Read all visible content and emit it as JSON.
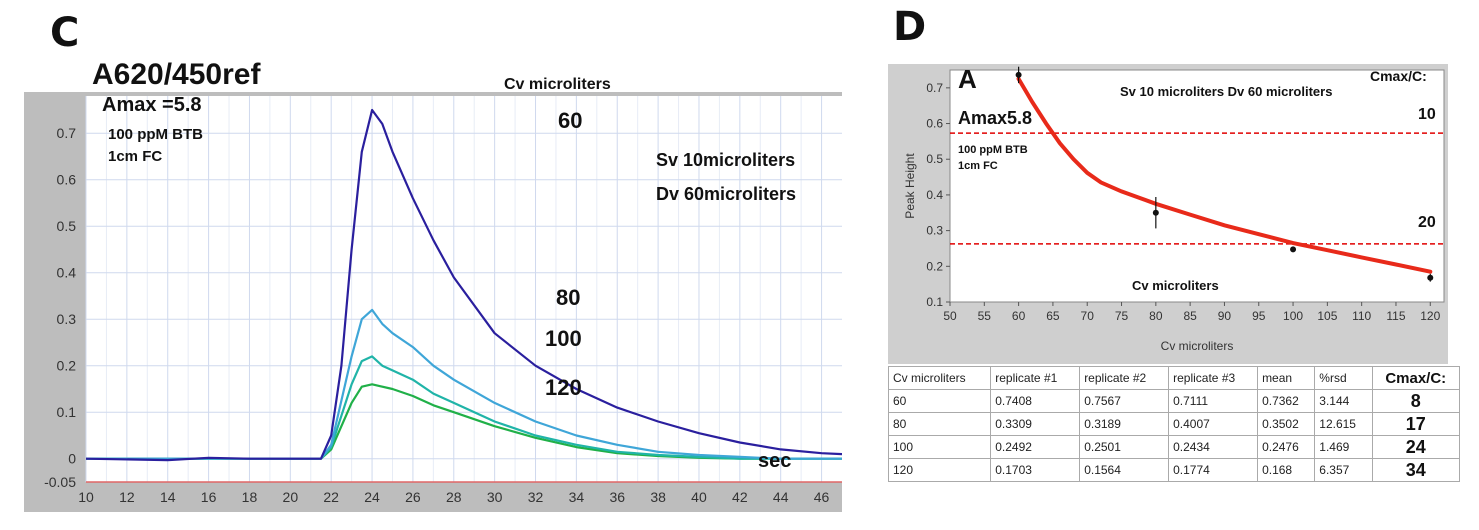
{
  "panel_c": {
    "letter": "C",
    "overlay": {
      "header": "A620/450ref",
      "amax": "Amax =5.8",
      "conc": "100 ppM BTB",
      "cell": "1cm FC",
      "cv_label": "Cv microliters",
      "sv": "Sv 10microliters",
      "dv": "Dv 60microliters",
      "sec": "sec",
      "labels_60": "60",
      "labels_80": "80",
      "labels_100": "100",
      "labels_120": "120"
    }
  },
  "panel_d": {
    "letter": "D",
    "overlay": {
      "corner": "A",
      "amax": "Amax5.8",
      "conc": "100 ppM BTB",
      "cell": "1cm FC",
      "sv_dv": "Sv 10 microliters  Dv 60 microliters",
      "cmax": "Cmax/C:",
      "line10": "10",
      "line20": "20",
      "cv": "Cv microliters"
    },
    "table": {
      "headers": [
        "Cv microliters",
        "replicate #1",
        "replicate #2",
        "replicate #3",
        "mean",
        "%rsd",
        "Cmax/C:"
      ],
      "rows": [
        [
          "60",
          "0.7408",
          "0.7567",
          "0.7111",
          "0.7362",
          "3.144",
          "8"
        ],
        [
          "80",
          "0.3309",
          "0.3189",
          "0.4007",
          "0.3502",
          "12.615",
          "17"
        ],
        [
          "100",
          "0.2492",
          "0.2501",
          "0.2434",
          "0.2476",
          "1.469",
          "24"
        ],
        [
          "120",
          "0.1703",
          "0.1564",
          "0.1774",
          "0.168",
          "6.357",
          "34"
        ]
      ]
    }
  },
  "chart_data": [
    {
      "type": "line",
      "panel": "C",
      "xlabel": "sec",
      "ylabel": "A620/450ref",
      "xlim": [
        10,
        47
      ],
      "ylim": [
        -0.05,
        0.78
      ],
      "x_ticks": [
        10,
        12,
        14,
        16,
        18,
        20,
        22,
        24,
        26,
        28,
        30,
        32,
        34,
        36,
        38,
        40,
        42,
        44,
        46
      ],
      "y_ticks": [
        -0.05,
        0,
        0.1,
        0.2,
        0.3,
        0.4,
        0.5,
        0.6,
        0.7
      ],
      "y_tick_labels": [
        "-0.05",
        "0",
        "0.1",
        "0.2",
        "0.3",
        "0.4",
        "0.5",
        "0.6",
        "0.7"
      ],
      "grid": true,
      "series": [
        {
          "name": "60",
          "color": "#2a1f9e",
          "points": [
            [
              10,
              0
            ],
            [
              14,
              -0.003
            ],
            [
              16,
              0.002
            ],
            [
              18,
              0
            ],
            [
              20,
              0
            ],
            [
              21.5,
              0
            ],
            [
              22,
              0.05
            ],
            [
              22.5,
              0.2
            ],
            [
              23,
              0.45
            ],
            [
              23.5,
              0.66
            ],
            [
              24,
              0.75
            ],
            [
              24.5,
              0.72
            ],
            [
              25,
              0.66
            ],
            [
              26,
              0.56
            ],
            [
              27,
              0.47
            ],
            [
              28,
              0.39
            ],
            [
              30,
              0.27
            ],
            [
              32,
              0.2
            ],
            [
              34,
              0.15
            ],
            [
              36,
              0.11
            ],
            [
              38,
              0.08
            ],
            [
              40,
              0.055
            ],
            [
              42,
              0.035
            ],
            [
              44,
              0.02
            ],
            [
              46,
              0.012
            ],
            [
              47,
              0.01
            ]
          ]
        },
        {
          "name": "80",
          "color": "#3fa6d8",
          "points": [
            [
              10,
              0
            ],
            [
              20,
              0
            ],
            [
              21.5,
              0
            ],
            [
              22,
              0.03
            ],
            [
              23,
              0.22
            ],
            [
              23.5,
              0.3
            ],
            [
              24,
              0.32
            ],
            [
              24.5,
              0.29
            ],
            [
              25,
              0.27
            ],
            [
              26,
              0.24
            ],
            [
              27,
              0.2
            ],
            [
              28,
              0.17
            ],
            [
              30,
              0.12
            ],
            [
              32,
              0.08
            ],
            [
              34,
              0.05
            ],
            [
              36,
              0.03
            ],
            [
              38,
              0.015
            ],
            [
              40,
              0.008
            ],
            [
              42,
              0.004
            ],
            [
              44,
              0
            ],
            [
              47,
              0
            ]
          ]
        },
        {
          "name": "100",
          "color": "#20b4a8",
          "points": [
            [
              10,
              0
            ],
            [
              20,
              0
            ],
            [
              21.5,
              0
            ],
            [
              22,
              0.025
            ],
            [
              23,
              0.16
            ],
            [
              23.5,
              0.21
            ],
            [
              24,
              0.22
            ],
            [
              24.5,
              0.2
            ],
            [
              25,
              0.19
            ],
            [
              26,
              0.17
            ],
            [
              27,
              0.14
            ],
            [
              28,
              0.12
            ],
            [
              30,
              0.08
            ],
            [
              32,
              0.05
            ],
            [
              34,
              0.03
            ],
            [
              36,
              0.015
            ],
            [
              38,
              0.008
            ],
            [
              40,
              0.004
            ],
            [
              42,
              0
            ],
            [
              47,
              0
            ]
          ]
        },
        {
          "name": "120",
          "color": "#20b048",
          "points": [
            [
              10,
              0
            ],
            [
              20,
              0
            ],
            [
              21.5,
              0
            ],
            [
              22,
              0.02
            ],
            [
              23,
              0.12
            ],
            [
              23.5,
              0.155
            ],
            [
              24,
              0.16
            ],
            [
              25,
              0.15
            ],
            [
              26,
              0.135
            ],
            [
              27,
              0.115
            ],
            [
              28,
              0.1
            ],
            [
              30,
              0.07
            ],
            [
              32,
              0.045
            ],
            [
              34,
              0.025
            ],
            [
              36,
              0.012
            ],
            [
              38,
              0.006
            ],
            [
              40,
              0.002
            ],
            [
              42,
              0
            ],
            [
              47,
              0
            ]
          ]
        }
      ]
    },
    {
      "type": "scatter",
      "panel": "D",
      "xlabel": "Cv microliters",
      "ylabel": "Peak Height",
      "xlim": [
        50,
        122
      ],
      "ylim": [
        0.1,
        0.75
      ],
      "x_ticks": [
        50,
        55,
        60,
        65,
        70,
        75,
        80,
        85,
        90,
        95,
        100,
        105,
        110,
        115,
        120
      ],
      "y_ticks": [
        0.1,
        0.2,
        0.3,
        0.4,
        0.5,
        0.6,
        0.7
      ],
      "grid": false,
      "points": [
        {
          "x": 60,
          "y": 0.7362,
          "yerr": 0.023
        },
        {
          "x": 80,
          "y": 0.3502,
          "yerr": 0.044
        },
        {
          "x": 100,
          "y": 0.2476,
          "yerr": 0.004
        },
        {
          "x": 120,
          "y": 0.168,
          "yerr": 0.011
        }
      ],
      "fit_curve": {
        "color": "#e82a1a",
        "points": [
          [
            60,
            0.725
          ],
          [
            62,
            0.66
          ],
          [
            64,
            0.6
          ],
          [
            66,
            0.545
          ],
          [
            68,
            0.5
          ],
          [
            70,
            0.462
          ],
          [
            72,
            0.435
          ],
          [
            75,
            0.41
          ],
          [
            80,
            0.375
          ],
          [
            85,
            0.345
          ],
          [
            90,
            0.315
          ],
          [
            95,
            0.29
          ],
          [
            100,
            0.265
          ],
          [
            105,
            0.245
          ],
          [
            110,
            0.225
          ],
          [
            115,
            0.205
          ],
          [
            120,
            0.185
          ]
        ]
      },
      "reference_lines": [
        {
          "y": 0.573,
          "label": "10",
          "color": "#e00000"
        },
        {
          "y": 0.263,
          "label": "20",
          "color": "#e00000"
        }
      ]
    }
  ]
}
